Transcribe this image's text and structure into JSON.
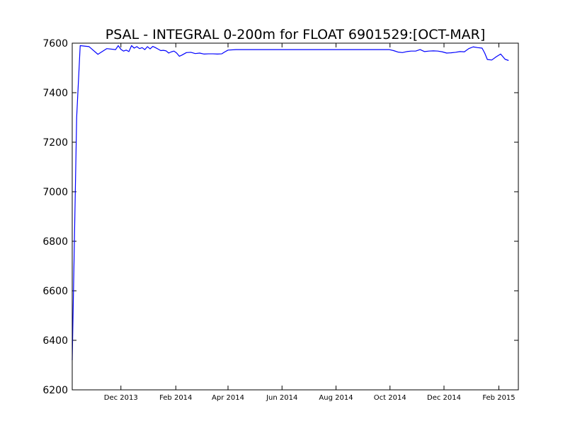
{
  "chart_data": {
    "type": "line",
    "title": "PSAL - INTEGRAL 0-200m for FLOAT 6901529:[OCT-MAR]",
    "xlabel": "",
    "ylabel": "",
    "ylim": [
      6200,
      7600
    ],
    "xlim": [
      "2013-10-07",
      "2015-02-23"
    ],
    "grid": false,
    "y_ticks": [
      6200,
      6400,
      6600,
      6800,
      7000,
      7200,
      7400,
      7600
    ],
    "x_ticks": [
      {
        "date": "2013-12-01",
        "label": "Dec 2013"
      },
      {
        "date": "2014-02-01",
        "label": "Feb 2014"
      },
      {
        "date": "2014-04-01",
        "label": "Apr 2014"
      },
      {
        "date": "2014-06-01",
        "label": "Jun 2014"
      },
      {
        "date": "2014-08-01",
        "label": "Aug 2014"
      },
      {
        "date": "2014-10-01",
        "label": "Oct 2014"
      },
      {
        "date": "2014-12-01",
        "label": "Dec 2014"
      },
      {
        "date": "2015-02-01",
        "label": "Feb 2015"
      }
    ],
    "series": [
      {
        "color": "#0000ff",
        "x": [
          "2013-10-07",
          "2013-10-12",
          "2013-10-16",
          "2013-10-26",
          "2013-11-05",
          "2013-11-15",
          "2013-11-25",
          "2013-11-28",
          "2013-12-01",
          "2013-12-04",
          "2013-12-07",
          "2013-12-10",
          "2013-12-13",
          "2013-12-16",
          "2013-12-19",
          "2013-12-22",
          "2013-12-25",
          "2013-12-28",
          "2013-12-31",
          "2014-01-03",
          "2014-01-06",
          "2014-01-09",
          "2014-01-12",
          "2014-01-15",
          "2014-01-18",
          "2014-01-21",
          "2014-01-24",
          "2014-01-27",
          "2014-01-30",
          "2014-02-02",
          "2014-02-05",
          "2014-02-08",
          "2014-02-13",
          "2014-02-18",
          "2014-02-23",
          "2014-02-28",
          "2014-03-05",
          "2014-03-10",
          "2014-03-15",
          "2014-03-20",
          "2014-03-25",
          "2014-03-28",
          "2014-04-01",
          "2014-04-10",
          "2014-04-30",
          "2014-05-31",
          "2014-06-30",
          "2014-07-31",
          "2014-08-31",
          "2014-09-30",
          "2014-10-05",
          "2014-10-10",
          "2014-10-15",
          "2014-10-20",
          "2014-10-25",
          "2014-10-30",
          "2014-11-04",
          "2014-11-09",
          "2014-11-14",
          "2014-11-19",
          "2014-11-24",
          "2014-11-29",
          "2014-12-04",
          "2014-12-09",
          "2014-12-14",
          "2014-12-19",
          "2014-12-24",
          "2014-12-29",
          "2015-01-03",
          "2015-01-08",
          "2015-01-13",
          "2015-01-16",
          "2015-01-19",
          "2015-01-24",
          "2015-01-29",
          "2015-02-03",
          "2015-02-08",
          "2015-02-12"
        ],
        "y": [
          6320,
          7300,
          7590,
          7586,
          7555,
          7578,
          7574,
          7590,
          7575,
          7568,
          7572,
          7566,
          7590,
          7580,
          7586,
          7578,
          7582,
          7574,
          7586,
          7577,
          7587,
          7582,
          7576,
          7570,
          7571,
          7569,
          7560,
          7565,
          7568,
          7560,
          7547,
          7552,
          7562,
          7563,
          7558,
          7560,
          7556,
          7557,
          7557,
          7556,
          7557,
          7564,
          7572,
          7574,
          7574,
          7574,
          7574,
          7574,
          7574,
          7574,
          7570,
          7564,
          7562,
          7566,
          7568,
          7568,
          7574,
          7566,
          7568,
          7569,
          7568,
          7565,
          7560,
          7561,
          7563,
          7566,
          7565,
          7578,
          7585,
          7582,
          7580,
          7560,
          7534,
          7532,
          7545,
          7556,
          7535,
          7530
        ]
      }
    ]
  }
}
